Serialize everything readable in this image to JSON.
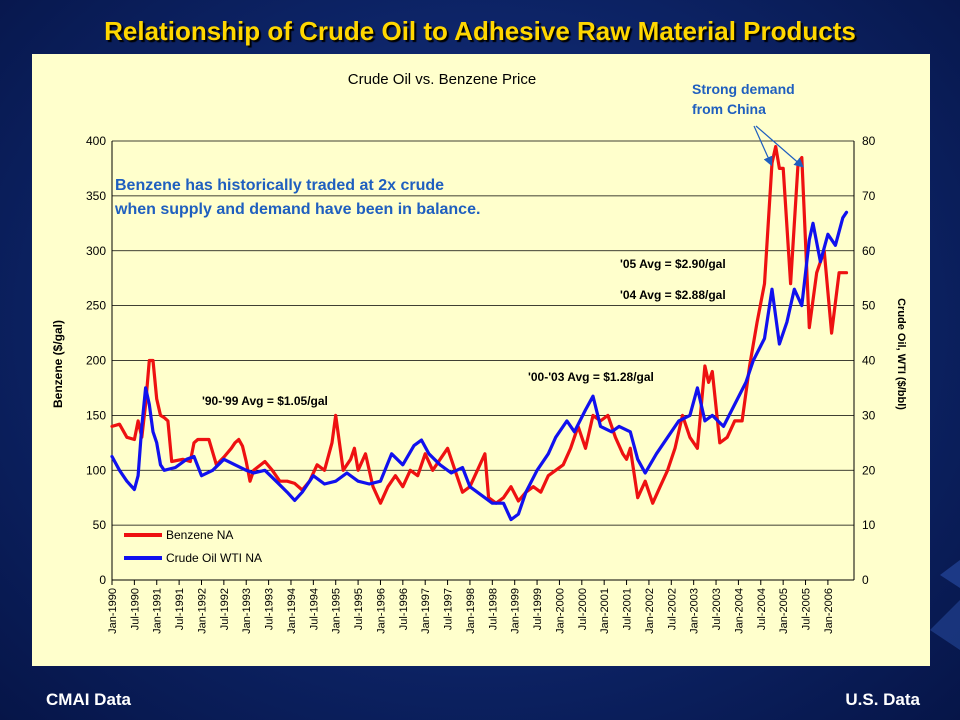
{
  "slide": {
    "title": "Relationship of Crude Oil to Adhesive Raw Material Products",
    "footer_left": "CMAI Data",
    "footer_right": "U.S. Data"
  },
  "colors": {
    "benzene": "#ee1111",
    "crude": "#1111ee",
    "annotation_blue": "#1f5fbf",
    "panel": "#ffffcc",
    "title": "#ffd700"
  },
  "chart_data": {
    "type": "line",
    "title": "Crude Oil vs. Benzene Price",
    "ylabel": "Benzene ($/gal)",
    "y2label": "Crude Oil, WTI ($/bbl)",
    "ylim": [
      0,
      400
    ],
    "y2lim": [
      0,
      80
    ],
    "y_ticks": [
      "0",
      "50",
      "100",
      "150",
      "200",
      "250",
      "300",
      "350",
      "400"
    ],
    "y2_ticks": [
      "0",
      "10",
      "20",
      "30",
      "40",
      "50",
      "60",
      "70",
      "80"
    ],
    "x_tick_labels": [
      "Jan-1990",
      "Jul-1990",
      "Jan-1991",
      "Jul-1991",
      "Jan-1992",
      "Jul-1992",
      "Jan-1993",
      "Jul-1993",
      "Jan-1994",
      "Jul-1994",
      "Jan-1995",
      "Jul-1995",
      "Jan-1996",
      "Jul-1996",
      "Jan-1997",
      "Jul-1997",
      "Jan-1998",
      "Jul-1998",
      "Jan-1999",
      "Jul-1999",
      "Jan-2000",
      "Jul-2000",
      "Jan-2001",
      "Jul-2001",
      "Jan-2002",
      "Jul-2002",
      "Jan-2003",
      "Jul-2003",
      "Jan-2004",
      "Jul-2004",
      "Jan-2005",
      "Jul-2005",
      "Jan-2006"
    ],
    "grid": "horizontal",
    "legend_position": "bottom-left",
    "series": [
      {
        "name": "Benzene NA",
        "axis": "left",
        "points": [
          [
            "1990-01",
            140
          ],
          [
            "1990-03",
            142
          ],
          [
            "1990-05",
            130
          ],
          [
            "1990-07",
            128
          ],
          [
            "1990-08",
            145
          ],
          [
            "1990-09",
            130
          ],
          [
            "1990-10",
            160
          ],
          [
            "1990-11",
            200
          ],
          [
            "1990-12",
            200
          ],
          [
            "1991-01",
            165
          ],
          [
            "1991-02",
            150
          ],
          [
            "1991-03",
            148
          ],
          [
            "1991-04",
            145
          ],
          [
            "1991-05",
            108
          ],
          [
            "1991-08",
            110
          ],
          [
            "1991-10",
            108
          ],
          [
            "1991-11",
            125
          ],
          [
            "1991-12",
            128
          ],
          [
            "1992-03",
            128
          ],
          [
            "1992-05",
            105
          ],
          [
            "1992-07",
            112
          ],
          [
            "1992-09",
            120
          ],
          [
            "1992-10",
            125
          ],
          [
            "1992-11",
            128
          ],
          [
            "1992-12",
            122
          ],
          [
            "1993-01",
            108
          ],
          [
            "1993-02",
            90
          ],
          [
            "1993-03",
            100
          ],
          [
            "1993-06",
            108
          ],
          [
            "1993-08",
            100
          ],
          [
            "1993-10",
            90
          ],
          [
            "1993-12",
            90
          ],
          [
            "1994-02",
            88
          ],
          [
            "1994-04",
            82
          ],
          [
            "1994-06",
            90
          ],
          [
            "1994-08",
            105
          ],
          [
            "1994-10",
            100
          ],
          [
            "1994-12",
            125
          ],
          [
            "1995-01",
            150
          ],
          [
            "1995-03",
            100
          ],
          [
            "1995-05",
            110
          ],
          [
            "1995-06",
            120
          ],
          [
            "1995-07",
            100
          ],
          [
            "1995-09",
            115
          ],
          [
            "1995-11",
            85
          ],
          [
            "1996-01",
            70
          ],
          [
            "1996-03",
            85
          ],
          [
            "1996-05",
            95
          ],
          [
            "1996-07",
            85
          ],
          [
            "1996-09",
            100
          ],
          [
            "1996-11",
            95
          ],
          [
            "1997-01",
            115
          ],
          [
            "1997-03",
            100
          ],
          [
            "1997-05",
            110
          ],
          [
            "1997-07",
            120
          ],
          [
            "1997-09",
            100
          ],
          [
            "1997-11",
            80
          ],
          [
            "1998-01",
            85
          ],
          [
            "1998-03",
            100
          ],
          [
            "1998-05",
            115
          ],
          [
            "1998-06",
            75
          ],
          [
            "1998-08",
            70
          ],
          [
            "1998-10",
            75
          ],
          [
            "1998-12",
            85
          ],
          [
            "1999-02",
            72
          ],
          [
            "1999-04",
            80
          ],
          [
            "1999-06",
            85
          ],
          [
            "1999-08",
            80
          ],
          [
            "1999-10",
            95
          ],
          [
            "1999-12",
            100
          ],
          [
            "2000-02",
            105
          ],
          [
            "2000-04",
            120
          ],
          [
            "2000-06",
            140
          ],
          [
            "2000-08",
            120
          ],
          [
            "2000-10",
            150
          ],
          [
            "2000-12",
            145
          ],
          [
            "2001-02",
            150
          ],
          [
            "2001-04",
            130
          ],
          [
            "2001-06",
            115
          ],
          [
            "2001-07",
            110
          ],
          [
            "2001-08",
            120
          ],
          [
            "2001-10",
            75
          ],
          [
            "2001-12",
            90
          ],
          [
            "2002-02",
            70
          ],
          [
            "2002-04",
            85
          ],
          [
            "2002-06",
            100
          ],
          [
            "2002-08",
            120
          ],
          [
            "2002-10",
            150
          ],
          [
            "2002-12",
            130
          ],
          [
            "2003-02",
            120
          ],
          [
            "2003-04",
            195
          ],
          [
            "2003-05",
            180
          ],
          [
            "2003-06",
            190
          ],
          [
            "2003-08",
            125
          ],
          [
            "2003-10",
            130
          ],
          [
            "2003-12",
            145
          ],
          [
            "2004-02",
            145
          ],
          [
            "2004-04",
            195
          ],
          [
            "2004-06",
            235
          ],
          [
            "2004-08",
            270
          ],
          [
            "2004-10",
            380
          ],
          [
            "2004-11",
            395
          ],
          [
            "2004-12",
            375
          ],
          [
            "2005-01",
            375
          ],
          [
            "2005-03",
            270
          ],
          [
            "2005-05",
            380
          ],
          [
            "2005-06",
            385
          ],
          [
            "2005-08",
            230
          ],
          [
            "2005-10",
            280
          ],
          [
            "2005-12",
            300
          ],
          [
            "2006-02",
            225
          ],
          [
            "2006-04",
            280
          ],
          [
            "2006-06",
            280
          ]
        ]
      },
      {
        "name": "Crude Oil WTI NA",
        "axis": "right",
        "points": [
          [
            "1990-01",
            22.5
          ],
          [
            "1990-03",
            20
          ],
          [
            "1990-05",
            18
          ],
          [
            "1990-07",
            16.5
          ],
          [
            "1990-08",
            19
          ],
          [
            "1990-09",
            28
          ],
          [
            "1990-10",
            35
          ],
          [
            "1990-11",
            32
          ],
          [
            "1990-12",
            27
          ],
          [
            "1991-01",
            25
          ],
          [
            "1991-02",
            21
          ],
          [
            "1991-03",
            20
          ],
          [
            "1991-06",
            20.5
          ],
          [
            "1991-09",
            22
          ],
          [
            "1991-11",
            22.5
          ],
          [
            "1992-01",
            19
          ],
          [
            "1992-04",
            20
          ],
          [
            "1992-07",
            22
          ],
          [
            "1992-10",
            21
          ],
          [
            "1993-01",
            20
          ],
          [
            "1993-03",
            19.5
          ],
          [
            "1993-06",
            20
          ],
          [
            "1993-09",
            18
          ],
          [
            "1993-12",
            16
          ],
          [
            "1994-02",
            14.5
          ],
          [
            "1994-04",
            16
          ],
          [
            "1994-07",
            19
          ],
          [
            "1994-10",
            17.5
          ],
          [
            "1995-01",
            18
          ],
          [
            "1995-04",
            19.5
          ],
          [
            "1995-07",
            18
          ],
          [
            "1995-10",
            17.5
          ],
          [
            "1996-01",
            18
          ],
          [
            "1996-04",
            23
          ],
          [
            "1996-07",
            21
          ],
          [
            "1996-10",
            24.5
          ],
          [
            "1996-12",
            25.5
          ],
          [
            "1997-02",
            23
          ],
          [
            "1997-05",
            21
          ],
          [
            "1997-08",
            19.5
          ],
          [
            "1997-11",
            20.5
          ],
          [
            "1998-01",
            17
          ],
          [
            "1998-04",
            15.5
          ],
          [
            "1998-07",
            14
          ],
          [
            "1998-10",
            14
          ],
          [
            "1998-12",
            11
          ],
          [
            "1999-02",
            12
          ],
          [
            "1999-04",
            16
          ],
          [
            "1999-07",
            20
          ],
          [
            "1999-10",
            23
          ],
          [
            "1999-12",
            26
          ],
          [
            "2000-03",
            29
          ],
          [
            "2000-05",
            27
          ],
          [
            "2000-08",
            31
          ],
          [
            "2000-10",
            33.5
          ],
          [
            "2000-12",
            28
          ],
          [
            "2001-03",
            27
          ],
          [
            "2001-05",
            28
          ],
          [
            "2001-08",
            27
          ],
          [
            "2001-10",
            22
          ],
          [
            "2001-12",
            19.5
          ],
          [
            "2002-03",
            23
          ],
          [
            "2002-06",
            26
          ],
          [
            "2002-09",
            29
          ],
          [
            "2002-12",
            30
          ],
          [
            "2003-02",
            35
          ],
          [
            "2003-04",
            29
          ],
          [
            "2003-06",
            30
          ],
          [
            "2003-09",
            28
          ],
          [
            "2003-12",
            32
          ],
          [
            "2004-03",
            36
          ],
          [
            "2004-05",
            40
          ],
          [
            "2004-08",
            44
          ],
          [
            "2004-10",
            53
          ],
          [
            "2004-12",
            43
          ],
          [
            "2005-02",
            47
          ],
          [
            "2005-04",
            53
          ],
          [
            "2005-06",
            50
          ],
          [
            "2005-08",
            62
          ],
          [
            "2005-09",
            65
          ],
          [
            "2005-11",
            58
          ],
          [
            "2006-01",
            63
          ],
          [
            "2006-03",
            61
          ],
          [
            "2006-05",
            66
          ],
          [
            "2006-06",
            67
          ]
        ]
      }
    ],
    "annotations": {
      "avg_1990s": "'90-'99 Avg = $1.05/gal",
      "avg_2000_03": "'00-'03 Avg = $1.28/gal",
      "avg_2004": "'04 Avg = $2.88/gal",
      "avg_2005": "'05 Avg = $2.90/gal",
      "benzene_note_line1": "Benzene has historically traded at 2x crude",
      "benzene_note_line2": "when supply and demand have been in balance.",
      "china_line1": "Strong demand",
      "china_line2": "from China"
    }
  }
}
